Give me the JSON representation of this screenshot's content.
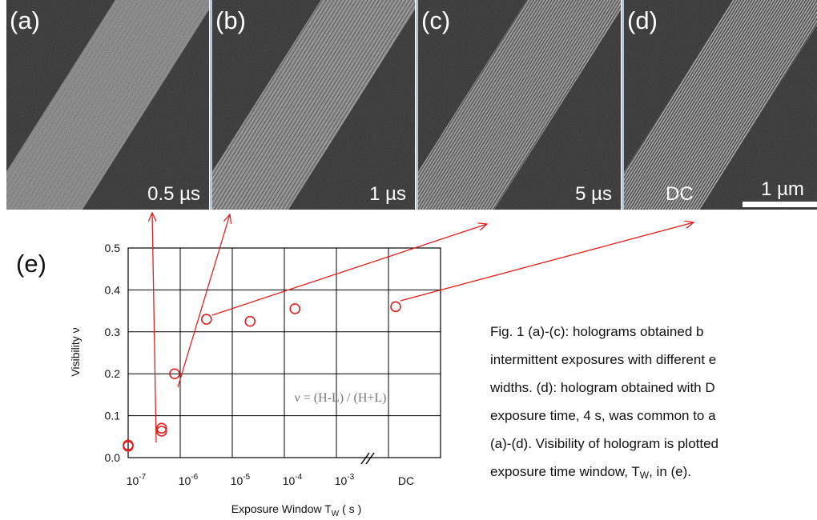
{
  "panels": [
    {
      "label": "(a)",
      "time": "0.5 µs"
    },
    {
      "label": "(b)",
      "time": "1 µs"
    },
    {
      "label": "(c)",
      "time": "5 µs"
    },
    {
      "label": "(d)",
      "time": "DC",
      "scale_bar": "1 µm"
    }
  ],
  "chart_data": {
    "type": "scatter",
    "panel_label": "(e)",
    "ylabel": "Visibility  ν",
    "xlabel": {
      "text": "Exposure Window  T",
      "sub": "W",
      "unit": " ( s )"
    },
    "annotation": "ν = (H-L) / (H+L)",
    "x_log": true,
    "xlim": [
      1e-07,
      0.1
    ],
    "xticks": [
      {
        "value": 1e-07,
        "label": "10",
        "sup": "-7"
      },
      {
        "value": 1e-06,
        "label": "10",
        "sup": "-6"
      },
      {
        "value": 1e-05,
        "label": "10",
        "sup": "-5"
      },
      {
        "value": 0.0001,
        "label": "10",
        "sup": "-4"
      },
      {
        "value": 0.001,
        "label": "10",
        "sup": "-3"
      }
    ],
    "dc_label": "DC",
    "dc_value": 0.36,
    "ylim": [
      0,
      0.5
    ],
    "yticks": [
      {
        "value": 0,
        "label": "0.0"
      },
      0.1,
      0.2,
      0.3,
      0.4,
      0.5
    ],
    "grid": true,
    "series": [
      {
        "color": "#e0201c",
        "x": [
          1e-07,
          1e-07,
          4.4e-07,
          4.4e-07,
          7.8e-07,
          3.2e-06,
          2.2e-05,
          0.00016
        ],
        "values": [
          0.03,
          0.027,
          0.07,
          0.063,
          0.2,
          0.33,
          0.325,
          0.355
        ]
      }
    ]
  },
  "caption": {
    "lines": [
      "Fig. 1   (a)-(c): holograms obtained b",
      "intermittent exposures with different e",
      "widths. (d): hologram obtained with D",
      "exposure time, 4 s, was common to a",
      "(a)-(d). Visibility of hologram is plotted"
    ],
    "last_line": {
      "text": "exposure time window, T",
      "sub": "W",
      "rest": ", in (e)."
    }
  }
}
